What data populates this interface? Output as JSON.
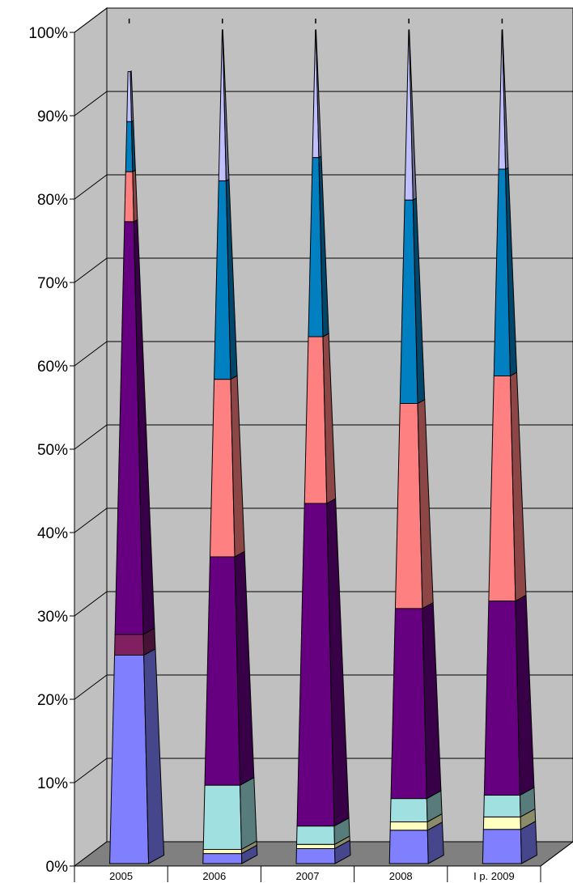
{
  "chart_data": {
    "type": "bar",
    "stacked": "100%",
    "shape": "3d-pyramid",
    "categories": [
      "2005",
      "2006",
      "2007",
      "2008",
      "I p. 2009"
    ],
    "ylim": [
      0,
      100
    ],
    "yticks": [
      "0%",
      "10%",
      "20%",
      "30%",
      "40%",
      "50%",
      "60%",
      "70%",
      "80%",
      "90%",
      "100%"
    ],
    "grid": true,
    "legend": "none",
    "series": [
      {
        "color": "#8080FF",
        "values": [
          25,
          1.2,
          1.8,
          4.0,
          4.1
        ]
      },
      {
        "color": "#FFFFC0",
        "values": [
          0,
          0.5,
          0.5,
          1.0,
          1.5
        ]
      },
      {
        "color": "#A0E0E0",
        "values": [
          0,
          7.7,
          2.2,
          2.8,
          2.6
        ]
      },
      {
        "color": "#802060",
        "values": [
          2.5,
          0,
          0,
          0,
          0
        ]
      },
      {
        "color": "#660080",
        "values": [
          49.5,
          27.4,
          38.7,
          22.8,
          23.3
        ]
      },
      {
        "color": "#FF8080",
        "values": [
          6,
          21.3,
          20.0,
          24.6,
          27.0
        ]
      },
      {
        "color": "#0080C0",
        "values": [
          6,
          23.8,
          21.5,
          24.4,
          24.8
        ]
      },
      {
        "color": "#C0C0FF",
        "values": [
          6,
          18.1,
          15.3,
          20.4,
          16.7
        ]
      }
    ]
  }
}
